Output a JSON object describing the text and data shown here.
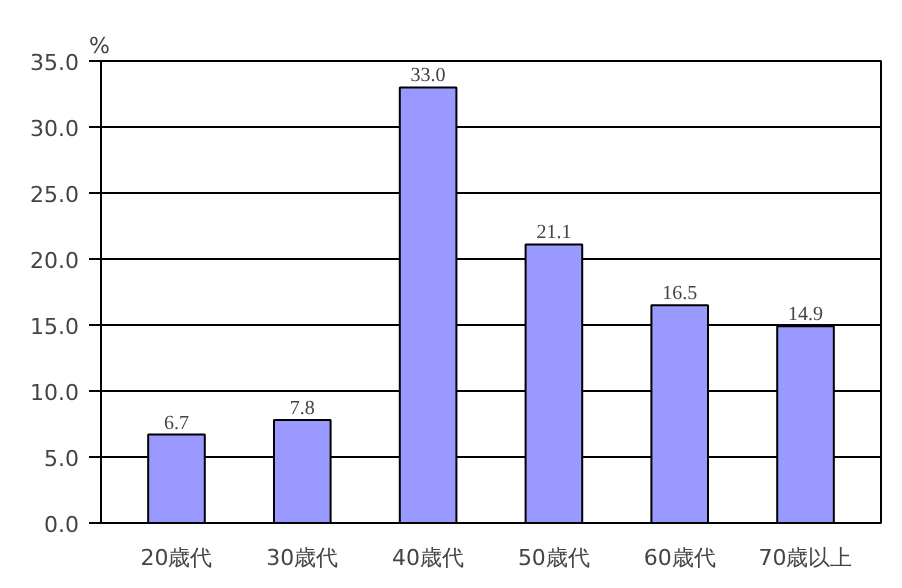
{
  "chart_data": {
    "type": "bar",
    "ylabel": "%",
    "categories": [
      "20歳代",
      "30歳代",
      "40歳代",
      "50歳代",
      "60歳代",
      "70歳以上"
    ],
    "values": [
      6.7,
      7.8,
      33.0,
      21.1,
      16.5,
      14.9
    ],
    "color": "#9999ff",
    "ylim": [
      0,
      35
    ],
    "yticks": [
      {
        "value": 0,
        "label": "0.0"
      },
      {
        "value": 5,
        "label": "5.0"
      },
      {
        "value": 10,
        "label": "10.0"
      },
      {
        "value": 15,
        "label": "15.0"
      },
      {
        "value": 20,
        "label": "20.0"
      },
      {
        "value": 25,
        "label": "25.0"
      },
      {
        "value": 30,
        "label": "30.0"
      },
      {
        "value": 35,
        "label": "35.0"
      }
    ],
    "value_labels": [
      "6.7",
      "7.8",
      "33.0",
      "21.1",
      "16.5",
      "14.9"
    ],
    "grid": "y"
  }
}
